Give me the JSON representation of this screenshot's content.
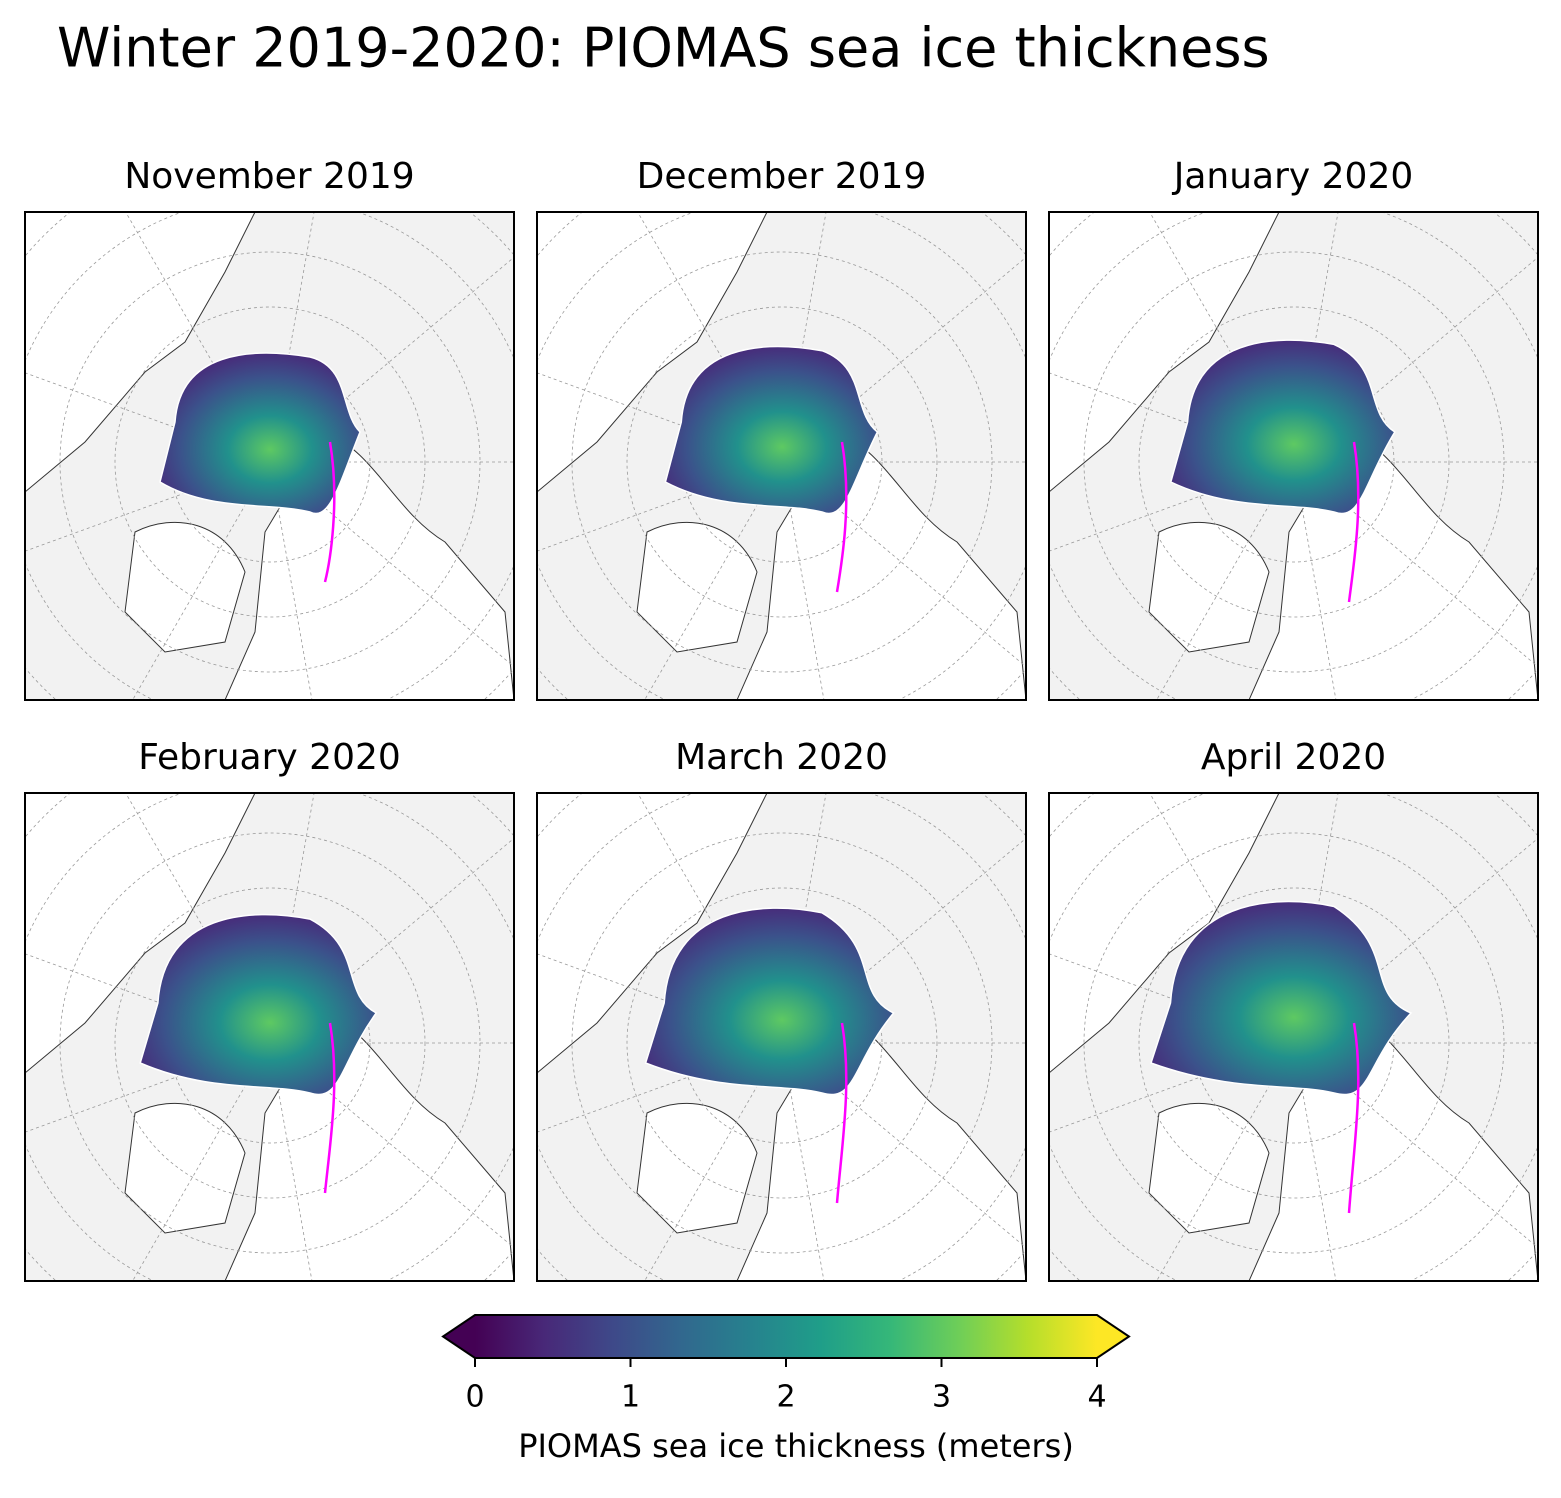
{
  "title": "Winter 2019-2020: PIOMAS sea ice thickness",
  "panels": [
    {
      "title": "November 2019"
    },
    {
      "title": "December 2019"
    },
    {
      "title": "January 2020"
    },
    {
      "title": "February 2020"
    },
    {
      "title": "March 2020"
    },
    {
      "title": "April 2020"
    }
  ],
  "colorbar": {
    "label": "PIOMAS sea ice thickness (meters)",
    "lim": [
      0,
      4
    ],
    "ticks": [
      0,
      1,
      2,
      3,
      4
    ],
    "colormap": "viridis",
    "extend": "both"
  }
}
